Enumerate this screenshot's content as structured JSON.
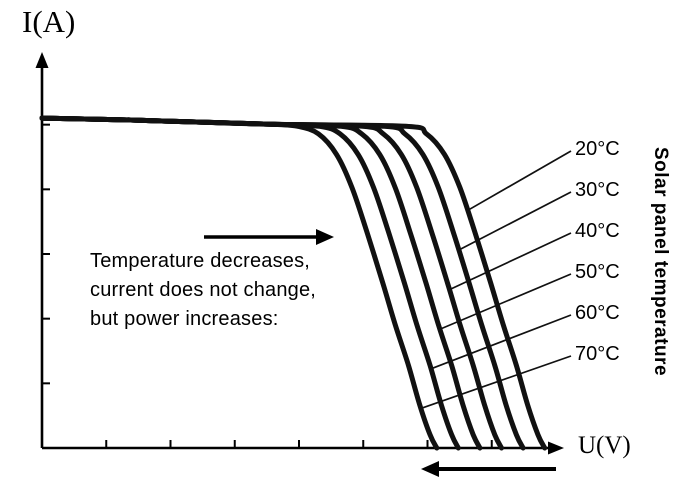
{
  "chart_data": {
    "type": "line",
    "title": "",
    "xlabel": "U(V)",
    "ylabel": "I(A)",
    "x_range": [
      0,
      1.0
    ],
    "y_range": [
      0,
      1.176
    ],
    "grid": false,
    "axis_numbers_visible": false,
    "short_circuit_current": 1.0,
    "series": [
      {
        "name": "20°C",
        "v_oc": 0.978
      },
      {
        "name": "30°C",
        "v_oc": 0.936
      },
      {
        "name": "40°C",
        "v_oc": 0.894
      },
      {
        "name": "50°C",
        "v_oc": 0.852
      },
      {
        "name": "60°C",
        "v_oc": 0.81
      },
      {
        "name": "70°C",
        "v_oc": 0.768
      }
    ],
    "flat_points": [
      [
        0,
        1.0
      ],
      [
        0.15,
        0.995
      ],
      [
        0.3,
        0.988
      ],
      [
        0.45,
        0.981
      ]
    ],
    "drop_profile": [
      [
        -0.27,
        0.975
      ],
      [
        -0.23,
        0.952
      ],
      [
        -0.195,
        0.89
      ],
      [
        -0.165,
        0.79
      ],
      [
        -0.135,
        0.65
      ],
      [
        -0.105,
        0.5
      ],
      [
        -0.08,
        0.37
      ],
      [
        -0.055,
        0.25
      ],
      [
        -0.033,
        0.13
      ],
      [
        -0.013,
        0.04
      ],
      [
        0,
        0
      ]
    ],
    "label_touch_i": [
      0.72,
      0.6,
      0.48,
      0.36,
      0.24,
      0.12
    ],
    "x_tick_count": 7,
    "y_tick_count": 5,
    "right_axis_title": "Solar panel temperature",
    "annotations": {
      "lines": [
        "Temperature decreases,",
        "current does not change,",
        "but power increases:"
      ],
      "right_arrow_above_text": true,
      "left_arrow_below_x_axis": true
    },
    "colors": {
      "curve": "#111111",
      "text": "#000000",
      "background": "#ffffff"
    }
  }
}
